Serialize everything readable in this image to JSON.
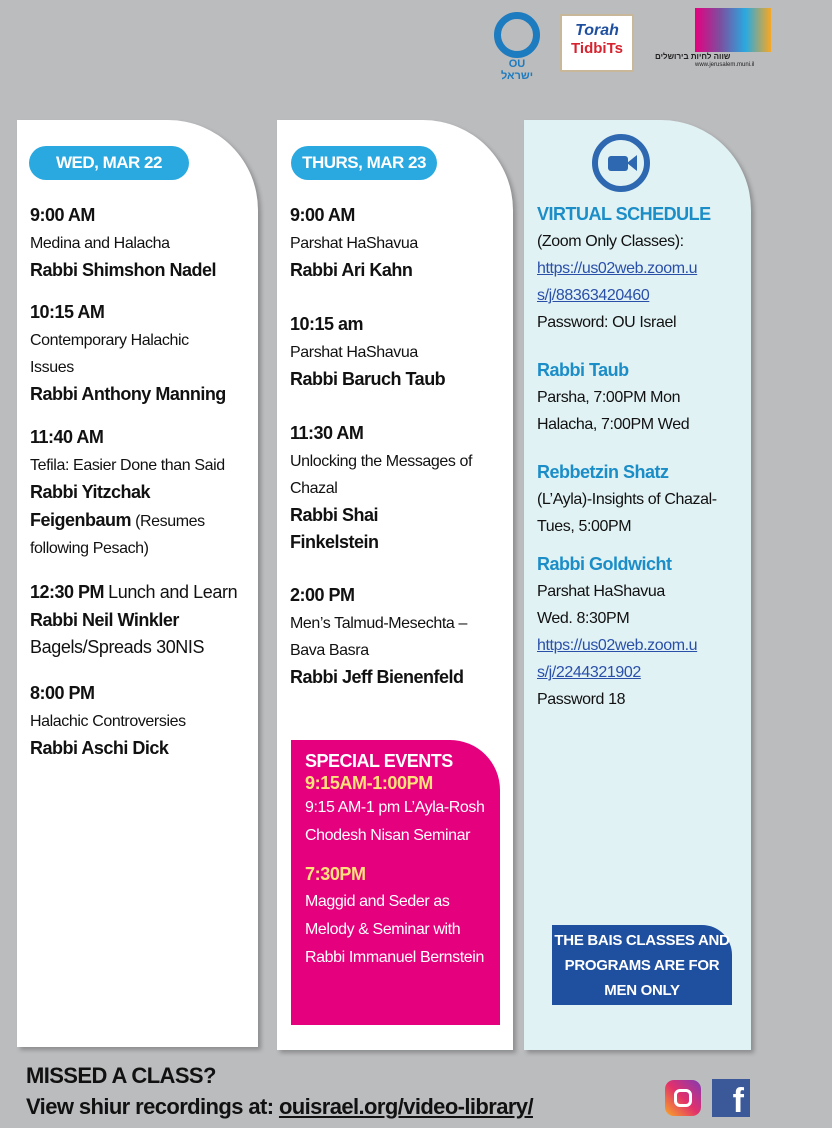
{
  "logos": {
    "ou": "OU ישראל",
    "torah": "Torah",
    "tidbits": "TidbiTs",
    "jlm_he": "שווה לחיות בירושלים",
    "jlm_url": "www.jerusalem.muni.il"
  },
  "col1": {
    "date": "WED, MAR 22",
    "entries": [
      {
        "time": "9:00 AM",
        "topic": "Medina and Halacha",
        "rabbi": "Rabbi Shimshon Nadel"
      },
      {
        "time": "10:15 AM",
        "topic": "Contemporary Halachic Issues",
        "rabbi": "Rabbi Anthony Manning"
      },
      {
        "time": "11:40 AM",
        "topic": "Tefila: Easier Done than Said",
        "rabbi": "Rabbi Yitzchak Feigenbaum",
        "note": "(Resumes following Pesach)"
      },
      {
        "time": "12:30 PM",
        "topic": "Lunch and Learn",
        "rabbi": "Rabbi Neil Winkler",
        "note": "Bagels/Spreads 30NIS"
      },
      {
        "time": "8:00 PM",
        "topic": "Halachic Controversies",
        "rabbi": "Rabbi Aschi Dick"
      }
    ]
  },
  "col2": {
    "date": "THURS, MAR 23",
    "entries": [
      {
        "time": "9:00 AM",
        "topic": "Parshat HaShavua",
        "rabbi": "Rabbi Ari Kahn"
      },
      {
        "time": "10:15 am",
        "topic": "Parshat HaShavua",
        "rabbi": "Rabbi Baruch Taub"
      },
      {
        "time": "11:30 AM",
        "topic": "Unlocking the Messages of Chazal",
        "rabbi": "Rabbi Shai Finkelstein"
      },
      {
        "time": "2:00 PM",
        "topic": "Men’s Talmud-Mesechta – Bava Basra",
        "rabbi": "Rabbi Jeff Bienenfeld"
      }
    ],
    "special": {
      "title": "SPECIAL EVENTS",
      "t1": "9:15AM-1:00PM",
      "d1": "9:15 AM-1 pm L’Ayla-Rosh Chodesh Nisan Seminar",
      "t2": "7:30PM",
      "d2": "Maggid and Seder as Melody & Seminar with Rabbi Immanuel Bernstein"
    }
  },
  "col3": {
    "title": "VIRTUAL SCHEDULE",
    "sub": "(Zoom Only Classes):",
    "link1": "https://us02web.zoom.us/j/88363420460",
    "pw1": "Password: OU Israel",
    "r1": "Rabbi Taub",
    "r1a": "Parsha, 7:00PM Mon",
    "r1b": "Halacha, 7:00PM Wed",
    "r2": "Rebbetzin Shatz",
    "r2a": "(L’Ayla)-Insights of Chazal- Tues, 5:00PM",
    "r3": "Rabbi Goldwicht",
    "r3a": "Parshat HaShavua",
    "r3b": "Wed. 8:30PM",
    "link2": "https://us02web.zoom.us/j/2244321902",
    "pw2": "Password 18",
    "men": "THE BAIS CLASSES AND PROGRAMS ARE FOR MEN ONLY"
  },
  "footer": {
    "line1": "MISSED A CLASS?",
    "line2": "View shiur recordings at:",
    "link": "ouisrael.org/video-library/"
  },
  "colors": {
    "bg": "#bbbcbe",
    "pill": "#2aa9e0",
    "pink": "#e5007e",
    "blue": "#1f4f9f",
    "heading": "#1b8dc7"
  }
}
